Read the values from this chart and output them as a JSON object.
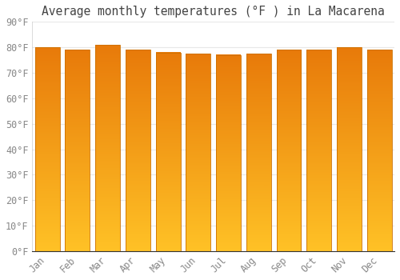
{
  "title": "Average monthly temperatures (°F ) in La Macarena",
  "months": [
    "Jan",
    "Feb",
    "Mar",
    "Apr",
    "May",
    "Jun",
    "Jul",
    "Aug",
    "Sep",
    "Oct",
    "Nov",
    "Dec"
  ],
  "values": [
    80,
    79,
    81,
    79,
    78,
    77.5,
    77,
    77.5,
    79,
    79,
    80,
    79
  ],
  "bar_color_bottom": "#FFC125",
  "bar_color_top": "#E87800",
  "bar_edge_color": "#CC7000",
  "ylim": [
    0,
    90
  ],
  "yticks": [
    0,
    10,
    20,
    30,
    40,
    50,
    60,
    70,
    80,
    90
  ],
  "ytick_labels": [
    "0°F",
    "10°F",
    "20°F",
    "30°F",
    "40°F",
    "50°F",
    "60°F",
    "70°F",
    "80°F",
    "90°F"
  ],
  "background_color": "#ffffff",
  "grid_color": "#e8e8e8",
  "title_fontsize": 10.5,
  "tick_fontsize": 8.5,
  "font_family": "monospace"
}
